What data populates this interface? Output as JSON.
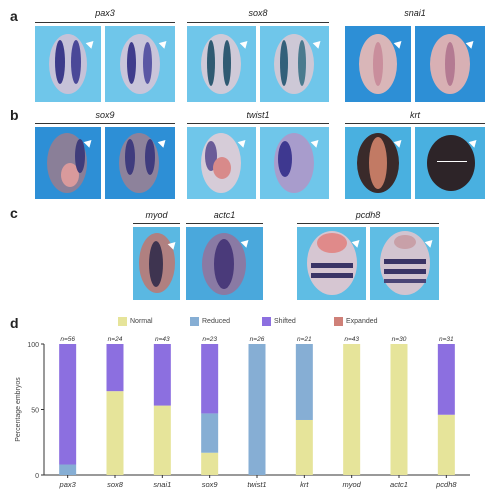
{
  "panels": {
    "a": {
      "letter": "a",
      "genes": [
        "pax3",
        "sox8",
        "snai1"
      ]
    },
    "b": {
      "letter": "b",
      "genes": [
        "sox9",
        "twist1",
        "krt"
      ]
    },
    "c": {
      "letter": "c",
      "genes": [
        "myod",
        "actc1",
        "pcdh8"
      ]
    },
    "d": {
      "letter": "d"
    }
  },
  "colors": {
    "normal": "#e6e49a",
    "reduced": "#86aed4",
    "shifted": "#8c6fe0",
    "expanded": "#cf8078",
    "photo_bg": "#6fc6ea",
    "photo_bg_dark": "#2d8fd6"
  },
  "chart_data": {
    "type": "bar",
    "stacked": true,
    "legend": [
      "Normal",
      "Reduced",
      "Shifted",
      "Expanded"
    ],
    "legend_placement": "top",
    "ylabel": "Percentage embryos",
    "xlabel": "",
    "ylim": [
      0,
      100
    ],
    "yticks": [
      "0",
      "50",
      "100"
    ],
    "categories": [
      "pax3",
      "sox8",
      "snai1",
      "sox9",
      "twist1",
      "krt",
      "myod",
      "actc1",
      "pcdh8"
    ],
    "n_labels": [
      "n=56",
      "n=24",
      "n=43",
      "n=23",
      "n=26",
      "n=21",
      "n=43",
      "n=30",
      "n=31"
    ],
    "series": [
      {
        "name": "Normal",
        "values": [
          0,
          64,
          53,
          17,
          0,
          42,
          100,
          100,
          46
        ]
      },
      {
        "name": "Reduced",
        "values": [
          8,
          0,
          0,
          30,
          100,
          58,
          0,
          0,
          0
        ]
      },
      {
        "name": "Shifted",
        "values": [
          92,
          36,
          47,
          53,
          0,
          0,
          0,
          0,
          54
        ]
      },
      {
        "name": "Expanded",
        "values": [
          0,
          0,
          0,
          0,
          0,
          0,
          0,
          0,
          0
        ]
      }
    ]
  }
}
